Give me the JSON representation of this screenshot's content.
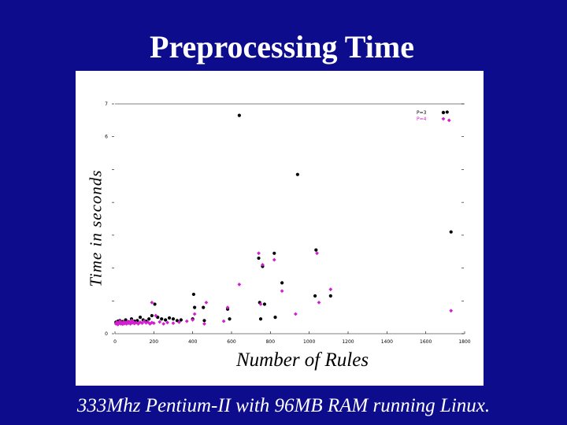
{
  "slide": {
    "title": "Preprocessing Time",
    "caption": "333Mhz Pentium-II with 96MB RAM running Linux."
  },
  "colors": {
    "background": "#0c0c8c",
    "series_1": "#000000",
    "series_2": "#d21fd2"
  },
  "chart_data": {
    "type": "scatter",
    "xlabel": "Number of Rules",
    "ylabel": "Time in seconds",
    "xlim": [
      0,
      1800
    ],
    "ylim": [
      0,
      7
    ],
    "xticks": [
      0,
      200,
      400,
      600,
      800,
      1000,
      1200,
      1400,
      1600,
      1800
    ],
    "yticks": [
      0,
      1,
      2,
      3,
      4,
      5,
      6,
      7
    ],
    "ytick_labels": [
      "0",
      "",
      "",
      "",
      "",
      "",
      "6",
      "7"
    ],
    "xtick_labels": [
      "0",
      "200",
      "400",
      "600",
      "800",
      "1000",
      "1200",
      "1400",
      "1600",
      "1800"
    ],
    "grid": false,
    "top_line": true,
    "legend_position": "top-right",
    "series": [
      {
        "name": "P=3",
        "marker": "circle",
        "points": [
          [
            5,
            0.35
          ],
          [
            15,
            0.38
          ],
          [
            25,
            0.4
          ],
          [
            40,
            0.37
          ],
          [
            55,
            0.42
          ],
          [
            70,
            0.36
          ],
          [
            85,
            0.45
          ],
          [
            100,
            0.38
          ],
          [
            115,
            0.4
          ],
          [
            130,
            0.5
          ],
          [
            145,
            0.42
          ],
          [
            160,
            0.38
          ],
          [
            175,
            0.45
          ],
          [
            190,
            0.55
          ],
          [
            205,
            0.9
          ],
          [
            220,
            0.5
          ],
          [
            240,
            0.45
          ],
          [
            260,
            0.42
          ],
          [
            280,
            0.48
          ],
          [
            300,
            0.45
          ],
          [
            320,
            0.4
          ],
          [
            340,
            0.42
          ],
          [
            400,
            0.45
          ],
          [
            405,
            1.2
          ],
          [
            410,
            0.8
          ],
          [
            455,
            0.8
          ],
          [
            460,
            0.4
          ],
          [
            580,
            0.75
          ],
          [
            590,
            0.45
          ],
          [
            640,
            6.65
          ],
          [
            740,
            2.3
          ],
          [
            745,
            0.95
          ],
          [
            750,
            0.45
          ],
          [
            760,
            2.05
          ],
          [
            770,
            0.9
          ],
          [
            820,
            2.45
          ],
          [
            825,
            0.5
          ],
          [
            860,
            1.55
          ],
          [
            940,
            4.85
          ],
          [
            1030,
            1.15
          ],
          [
            1035,
            2.55
          ],
          [
            1110,
            1.15
          ],
          [
            1710,
            6.75
          ],
          [
            1730,
            3.1
          ]
        ]
      },
      {
        "name": "P=4",
        "marker": "diamond",
        "points": [
          [
            5,
            0.3
          ],
          [
            10,
            0.35
          ],
          [
            15,
            0.28
          ],
          [
            20,
            0.32
          ],
          [
            25,
            0.38
          ],
          [
            30,
            0.3
          ],
          [
            35,
            0.33
          ],
          [
            40,
            0.29
          ],
          [
            45,
            0.36
          ],
          [
            50,
            0.31
          ],
          [
            55,
            0.34
          ],
          [
            60,
            0.3
          ],
          [
            65,
            0.37
          ],
          [
            70,
            0.32
          ],
          [
            75,
            0.35
          ],
          [
            80,
            0.3
          ],
          [
            85,
            0.4
          ],
          [
            90,
            0.33
          ],
          [
            95,
            0.36
          ],
          [
            100,
            0.31
          ],
          [
            110,
            0.34
          ],
          [
            120,
            0.3
          ],
          [
            130,
            0.35
          ],
          [
            140,
            0.32
          ],
          [
            150,
            0.38
          ],
          [
            160,
            0.33
          ],
          [
            170,
            0.35
          ],
          [
            180,
            0.3
          ],
          [
            190,
            0.34
          ],
          [
            200,
            0.32
          ],
          [
            190,
            0.95
          ],
          [
            210,
            0.55
          ],
          [
            230,
            0.36
          ],
          [
            250,
            0.3
          ],
          [
            270,
            0.34
          ],
          [
            300,
            0.32
          ],
          [
            330,
            0.35
          ],
          [
            370,
            0.38
          ],
          [
            400,
            0.42
          ],
          [
            410,
            0.6
          ],
          [
            460,
            0.3
          ],
          [
            470,
            0.95
          ],
          [
            560,
            0.38
          ],
          [
            580,
            0.8
          ],
          [
            640,
            1.5
          ],
          [
            740,
            2.45
          ],
          [
            750,
            0.9
          ],
          [
            760,
            2.1
          ],
          [
            820,
            2.25
          ],
          [
            860,
            1.3
          ],
          [
            930,
            0.6
          ],
          [
            1040,
            2.45
          ],
          [
            1050,
            0.95
          ],
          [
            1110,
            1.35
          ],
          [
            1720,
            6.5
          ],
          [
            1730,
            0.7
          ]
        ]
      }
    ]
  }
}
